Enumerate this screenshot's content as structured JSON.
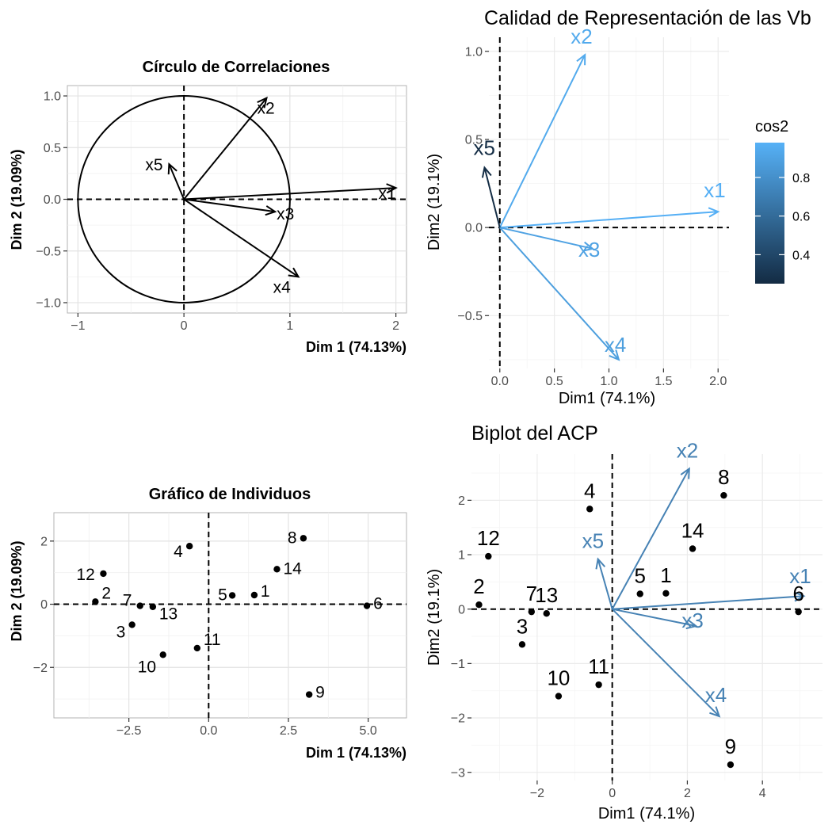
{
  "chart_data": [
    {
      "type": "scatter",
      "subtype": "correlation-circle",
      "title": "Círculo de Correlaciones",
      "xlabel": "Dim 1 (74.13%)",
      "ylabel": "Dim 2 (19.09%)",
      "xlim": [
        -1.1,
        2.1
      ],
      "ylim": [
        -1.1,
        1.1
      ],
      "xticks": [
        -1,
        0,
        1,
        2
      ],
      "xtick_labels": [
        "−1",
        "0",
        "1",
        "2"
      ],
      "yticks": [
        -1.0,
        -0.5,
        0.0,
        0.5,
        1.0
      ],
      "ytick_labels": [
        "−1.0",
        "−0.5",
        "0.0",
        "0.5",
        "1.0"
      ],
      "grid": true,
      "circle_radius": 1,
      "arrows": [
        {
          "name": "x1",
          "x": 2.0,
          "y": 0.11
        },
        {
          "name": "x2",
          "x": 0.78,
          "y": 0.98
        },
        {
          "name": "x3",
          "x": 0.86,
          "y": -0.12
        },
        {
          "name": "x4",
          "x": 1.08,
          "y": -0.75
        },
        {
          "name": "x5",
          "x": -0.14,
          "y": 0.34
        }
      ]
    },
    {
      "type": "scatter",
      "subtype": "variable-quality",
      "title": "Calidad de Representación de las Vb",
      "xlabel": "Dim1 (74.1%)",
      "ylabel": "Dim2 (19.1%)",
      "xlim": [
        -0.1,
        2.1
      ],
      "ylim": [
        -0.8,
        1.08
      ],
      "xticks": [
        0.0,
        0.5,
        1.0,
        1.5,
        2.0
      ],
      "xtick_labels": [
        "0.0",
        "0.5",
        "1.0",
        "1.5",
        "2.0"
      ],
      "yticks": [
        -0.5,
        0.0,
        0.5,
        1.0
      ],
      "ytick_labels": [
        "−0.5",
        "0.0",
        "0.5",
        "1.0"
      ],
      "grid": true,
      "legend": {
        "title": "cos2",
        "ticks": [
          0.4,
          0.6,
          0.8
        ],
        "tick_labels": [
          "0.4",
          "0.6",
          "0.8"
        ],
        "range": [
          0.25,
          0.98
        ],
        "color_low": "#132B43",
        "color_high": "#56B1F7",
        "position": "right"
      },
      "arrows": [
        {
          "name": "x1",
          "x": 2.0,
          "y": 0.09,
          "cos2": 0.97
        },
        {
          "name": "x2",
          "x": 0.78,
          "y": 0.98,
          "cos2": 0.94
        },
        {
          "name": "x3",
          "x": 0.85,
          "y": -0.12,
          "cos2": 0.9
        },
        {
          "name": "x4",
          "x": 1.09,
          "y": -0.75,
          "cos2": 0.88
        },
        {
          "name": "x5",
          "x": -0.14,
          "y": 0.34,
          "cos2": 0.26
        }
      ]
    },
    {
      "type": "scatter",
      "subtype": "individuals",
      "title": "Gráfico de Individuos",
      "xlabel": "Dim 1 (74.13%)",
      "ylabel": "Dim 2 (19.09%)",
      "xlim": [
        -4.85,
        6.2
      ],
      "ylim": [
        -3.6,
        2.9
      ],
      "xticks": [
        -2.5,
        0.0,
        2.5,
        5.0
      ],
      "xtick_labels": [
        "−2.5",
        "0.0",
        "2.5",
        "5.0"
      ],
      "yticks": [
        -2,
        0,
        2
      ],
      "ytick_labels": [
        "−2",
        "0",
        "2"
      ],
      "grid": true,
      "points": [
        {
          "label": "1",
          "x": 1.43,
          "y": 0.29
        },
        {
          "label": "2",
          "x": -3.55,
          "y": 0.08
        },
        {
          "label": "3",
          "x": -2.4,
          "y": -0.65
        },
        {
          "label": "4",
          "x": -0.6,
          "y": 1.84
        },
        {
          "label": "5",
          "x": 0.74,
          "y": 0.28
        },
        {
          "label": "6",
          "x": 4.96,
          "y": -0.05
        },
        {
          "label": "7",
          "x": -2.15,
          "y": -0.05
        },
        {
          "label": "8",
          "x": 2.97,
          "y": 2.09
        },
        {
          "label": "9",
          "x": 3.15,
          "y": -2.86
        },
        {
          "label": "10",
          "x": -1.43,
          "y": -1.6
        },
        {
          "label": "11",
          "x": -0.36,
          "y": -1.39
        },
        {
          "label": "12",
          "x": -3.3,
          "y": 0.97
        },
        {
          "label": "13",
          "x": -1.75,
          "y": -0.08
        },
        {
          "label": "14",
          "x": 2.14,
          "y": 1.11
        }
      ]
    },
    {
      "type": "scatter",
      "subtype": "biplot",
      "title": "Biplot del ACP",
      "xlabel": "Dim1 (74.1%)",
      "ylabel": "Dim2 (19.1%)",
      "xlim": [
        -3.75,
        5.6
      ],
      "ylim": [
        -3.15,
        2.85
      ],
      "xticks": [
        -2,
        0,
        2,
        4
      ],
      "xtick_labels": [
        "−2",
        "0",
        "2",
        "4"
      ],
      "yticks": [
        -3,
        -2,
        -1,
        0,
        1,
        2
      ],
      "ytick_labels": [
        "−3",
        "−2",
        "−1",
        "0",
        "1",
        "2"
      ],
      "grid": true,
      "arrow_color": "#4682B4",
      "arrows": [
        {
          "name": "x1",
          "x": 5.1,
          "y": 0.24
        },
        {
          "name": "x2",
          "x": 2.05,
          "y": 2.58
        },
        {
          "name": "x3",
          "x": 2.23,
          "y": -0.31
        },
        {
          "name": "x4",
          "x": 2.85,
          "y": -1.97
        },
        {
          "name": "x5",
          "x": -0.38,
          "y": 0.92
        }
      ],
      "points": [
        {
          "label": "1",
          "x": 1.43,
          "y": 0.29
        },
        {
          "label": "2",
          "x": -3.55,
          "y": 0.08
        },
        {
          "label": "3",
          "x": -2.4,
          "y": -0.65
        },
        {
          "label": "4",
          "x": -0.6,
          "y": 1.84
        },
        {
          "label": "5",
          "x": 0.74,
          "y": 0.28
        },
        {
          "label": "6",
          "x": 4.96,
          "y": -0.05
        },
        {
          "label": "7",
          "x": -2.15,
          "y": -0.05
        },
        {
          "label": "8",
          "x": 2.97,
          "y": 2.09
        },
        {
          "label": "9",
          "x": 3.15,
          "y": -2.86
        },
        {
          "label": "10",
          "x": -1.43,
          "y": -1.6
        },
        {
          "label": "11",
          "x": -0.36,
          "y": -1.39
        },
        {
          "label": "12",
          "x": -3.3,
          "y": 0.97
        },
        {
          "label": "13",
          "x": -1.75,
          "y": -0.08
        },
        {
          "label": "14",
          "x": 2.14,
          "y": 1.11
        }
      ]
    }
  ]
}
